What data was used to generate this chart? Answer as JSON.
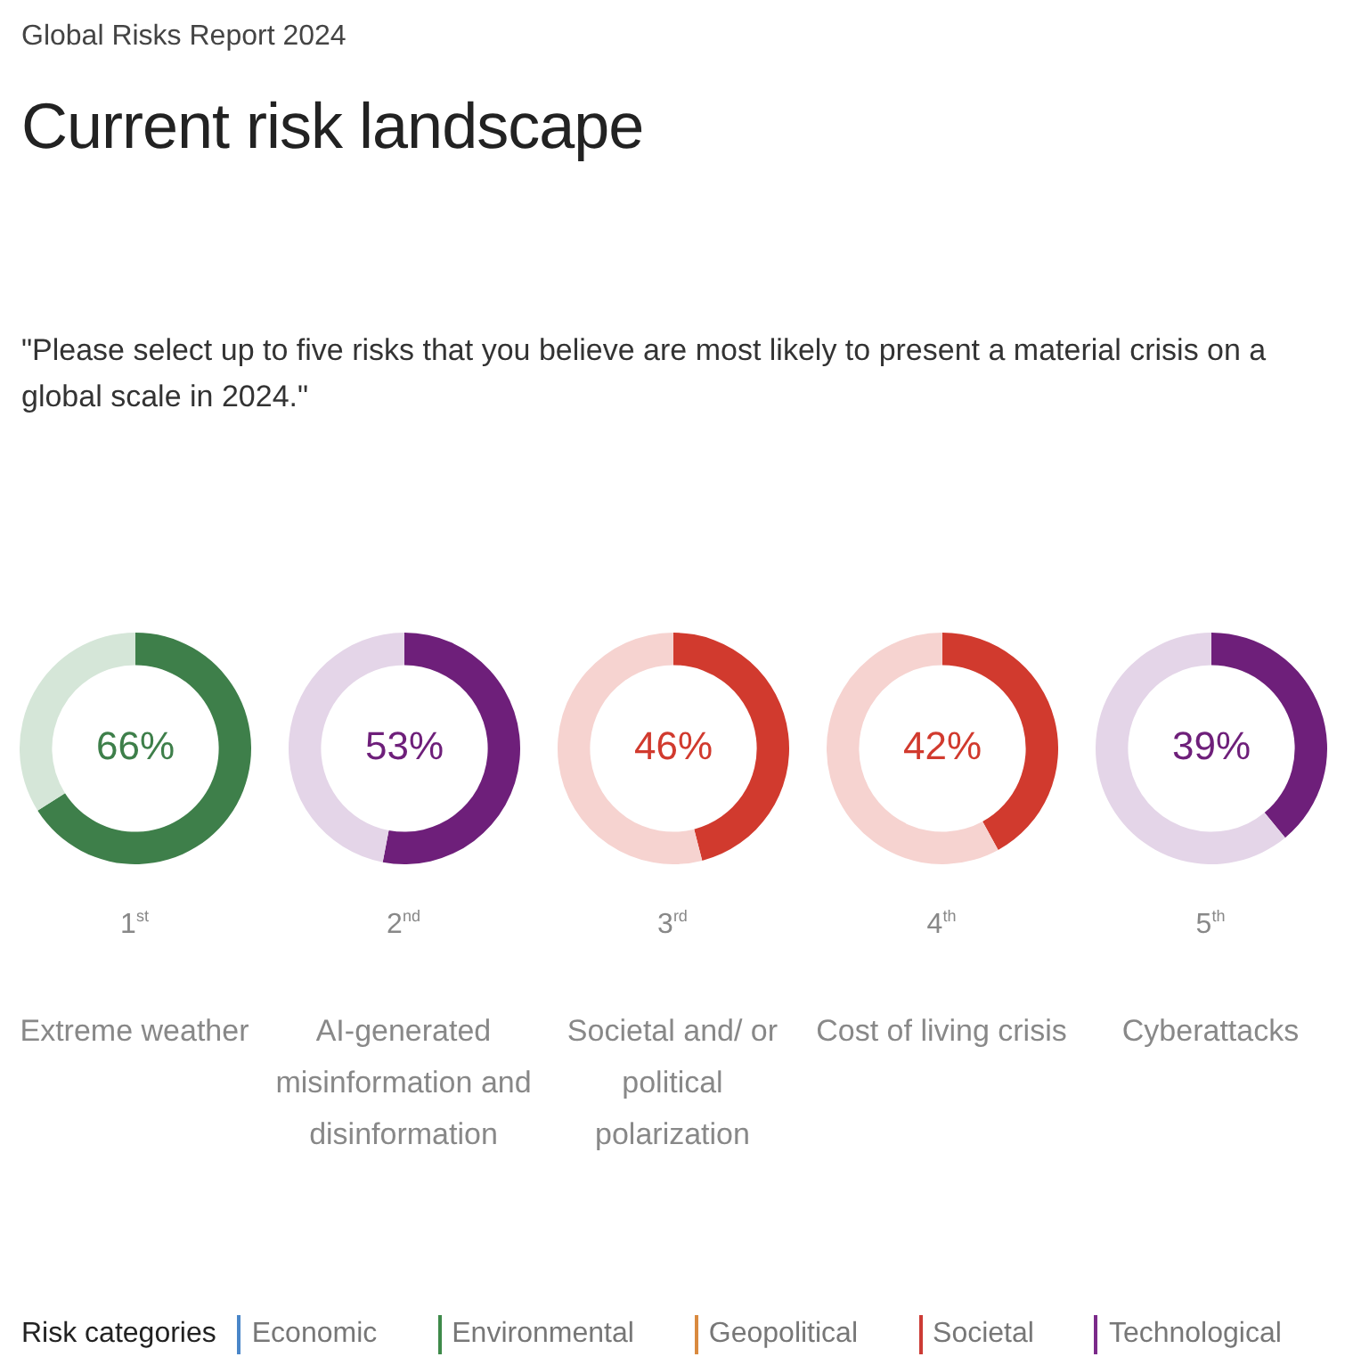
{
  "chart_data": [
    {
      "type": "other",
      "title": "Current risk landscape",
      "subtitle": "Global Risks Report 2024",
      "annotations": [
        "\"Please select up to five risks that you believe are most likely to present a material crisis on a global scale in 2024.\""
      ]
    },
    {
      "type": "donut",
      "title": "Extreme weather",
      "annotations": [
        "1$^{st}$"
      ],
      "categories": [
        null,
        null
      ],
      "values": [
        66,
        34
      ],
      "colors": [
        "#3e7f4a",
        "#d5e6d8"
      ],
      "value_labels": [
        "66%",
        null
      ]
    },
    {
      "type": "donut",
      "title": "AI-generated misinformation and disinformation",
      "annotations": [
        "2$^{nd}$"
      ],
      "categories": [
        null,
        null
      ],
      "values": [
        53,
        47
      ],
      "colors": [
        "#6e1f7a",
        "#e4d5e8"
      ],
      "value_labels": [
        "53%",
        null
      ]
    },
    {
      "type": "donut",
      "title": "Societal and/ or political polarization",
      "annotations": [
        "3$^{rd}$"
      ],
      "categories": [
        null,
        null
      ],
      "values": [
        46,
        54
      ],
      "colors": [
        "#d13a2e",
        "#f6d3d0"
      ],
      "value_labels": [
        "46%",
        null
      ]
    },
    {
      "type": "donut",
      "title": "Cost of living crisis",
      "annotations": [
        "4$^{th}$"
      ],
      "categories": [
        null,
        null
      ],
      "values": [
        42,
        58
      ],
      "colors": [
        "#d13a2e",
        "#f6d3d0"
      ],
      "value_labels": [
        "42%",
        null
      ]
    },
    {
      "type": "donut",
      "title": "Cyberattacks",
      "annotations": [
        "5$^{th}$"
      ],
      "categories": [
        null,
        null
      ],
      "values": [
        39,
        61
      ],
      "colors": [
        "#6e1f7a",
        "#e4d5e8"
      ],
      "value_labels": [
        "39%",
        null
      ]
    },
    {
      "type": "other",
      "legend_title": "Risk categories",
      "categories": [
        "Economic",
        "Environmental",
        "Geopolitical",
        "Societal",
        "Technological"
      ],
      "colors": [
        "#4a86c8",
        "#3e8a4a",
        "#d98a3f",
        "#cc3b35",
        "#7b2a8a"
      ]
    }
  ]
}
